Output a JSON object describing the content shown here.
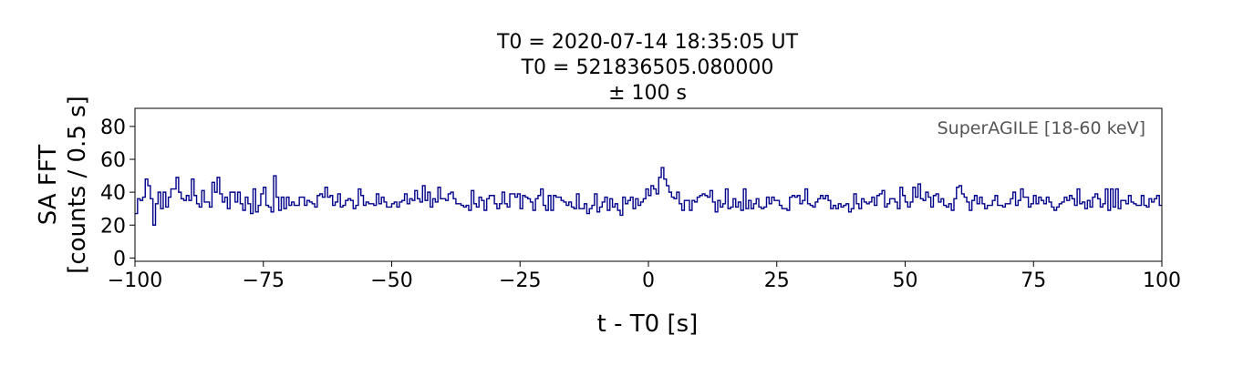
{
  "chart_data": {
    "type": "line",
    "drawstyle": "steps-mid",
    "title": [
      "T0 = 2020-07-14 18:35:05 UT",
      "T0 = 521836505.080000",
      "± 100 s"
    ],
    "xlabel": "t - T0 [s]",
    "ylabel": [
      "SA FFT",
      "[counts / 0.5 s]"
    ],
    "xlim": [
      -100,
      100
    ],
    "ylim": [
      -2,
      91
    ],
    "xticks": [
      -100,
      -75,
      -50,
      -25,
      0,
      25,
      50,
      75,
      100
    ],
    "xtick_labels": [
      "−100",
      "−75",
      "−50",
      "−25",
      "0",
      "25",
      "50",
      "75",
      "100"
    ],
    "yticks": [
      0,
      20,
      40,
      60,
      80
    ],
    "ytick_labels": [
      "0",
      "20",
      "40",
      "60",
      "80"
    ],
    "annotation": "SuperAGILE [18-60 keV]",
    "grid": false,
    "line_color": "#00008b",
    "bin_width": 0.5,
    "x_start": -100,
    "series": [
      {
        "values": [
          27,
          36,
          35,
          37,
          48,
          44,
          36,
          20,
          33,
          40,
          30,
          40,
          31,
          37,
          42,
          42,
          49,
          40,
          36,
          35,
          38,
          35,
          48,
          38,
          33,
          31,
          41,
          34,
          34,
          31,
          46,
          40,
          49,
          39,
          34,
          37,
          30,
          40,
          40,
          34,
          40,
          33,
          29,
          37,
          33,
          27,
          42,
          28,
          32,
          39,
          43,
          32,
          31,
          28,
          50,
          37,
          29,
          37,
          30,
          37,
          32,
          34,
          32,
          32,
          37,
          37,
          32,
          35,
          34,
          33,
          31,
          38,
          39,
          37,
          43,
          37,
          38,
          32,
          34,
          39,
          31,
          32,
          35,
          36,
          35,
          30,
          32,
          42,
          38,
          32,
          34,
          33,
          33,
          32,
          39,
          33,
          37,
          34,
          31,
          31,
          33,
          34,
          31,
          34,
          35,
          39,
          33,
          36,
          35,
          41,
          36,
          34,
          44,
          35,
          40,
          31,
          36,
          34,
          43,
          36,
          36,
          35,
          39,
          40,
          36,
          33,
          33,
          32,
          31,
          32,
          29,
          41,
          33,
          31,
          37,
          35,
          29,
          36,
          38,
          38,
          33,
          30,
          33,
          40,
          33,
          31,
          39,
          39,
          37,
          39,
          30,
          38,
          37,
          36,
          34,
          29,
          36,
          38,
          42,
          32,
          29,
          38,
          29,
          38,
          37,
          37,
          35,
          34,
          32,
          34,
          31,
          30,
          39,
          30,
          30,
          33,
          27,
          30,
          32,
          39,
          28,
          31,
          34,
          37,
          29,
          36,
          31,
          33,
          29,
          26,
          37,
          33,
          35,
          37,
          30,
          36,
          32,
          34,
          36,
          42,
          38,
          44,
          42,
          39,
          49,
          55,
          48,
          44,
          40,
          37,
          36,
          40,
          33,
          29,
          35,
          35,
          29,
          35,
          34,
          37,
          38,
          39,
          38,
          37,
          41,
          34,
          28,
          35,
          31,
          33,
          42,
          30,
          31,
          36,
          31,
          34,
          29,
          42,
          30,
          35,
          30,
          33,
          36,
          31,
          30,
          31,
          37,
          33,
          37,
          35,
          35,
          32,
          30,
          30,
          29,
          37,
          38,
          37,
          38,
          33,
          35,
          42,
          33,
          32,
          31,
          34,
          36,
          38,
          36,
          38,
          35,
          30,
          32,
          30,
          33,
          31,
          32,
          33,
          28,
          30,
          39,
          33,
          30,
          36,
          34,
          33,
          34,
          37,
          32,
          38,
          39,
          41,
          31,
          33,
          36,
          36,
          34,
          30,
          43,
          38,
          34,
          31,
          34,
          43,
          37,
          45,
          36,
          35,
          40,
          37,
          31,
          38,
          39,
          34,
          36,
          32,
          31,
          33,
          29,
          36,
          43,
          44,
          39,
          37,
          34,
          29,
          35,
          38,
          33,
          37,
          33,
          30,
          32,
          32,
          35,
          38,
          32,
          32,
          31,
          33,
          33,
          36,
          40,
          32,
          35,
          42,
          37,
          37,
          31,
          33,
          38,
          33,
          37,
          35,
          33,
          37,
          34,
          31,
          29,
          31,
          33,
          34,
          37,
          35,
          38,
          36,
          32,
          42,
          33,
          34,
          30,
          35,
          31,
          37,
          39,
          36,
          31,
          33,
          42,
          29,
          42,
          31,
          42,
          30,
          35,
          35,
          33,
          38,
          34,
          33,
          32,
          32,
          38,
          32,
          31,
          36,
          34,
          36,
          38,
          32
        ]
      }
    ],
    "burst_values": {
      "note": "",
      "values": []
    }
  }
}
